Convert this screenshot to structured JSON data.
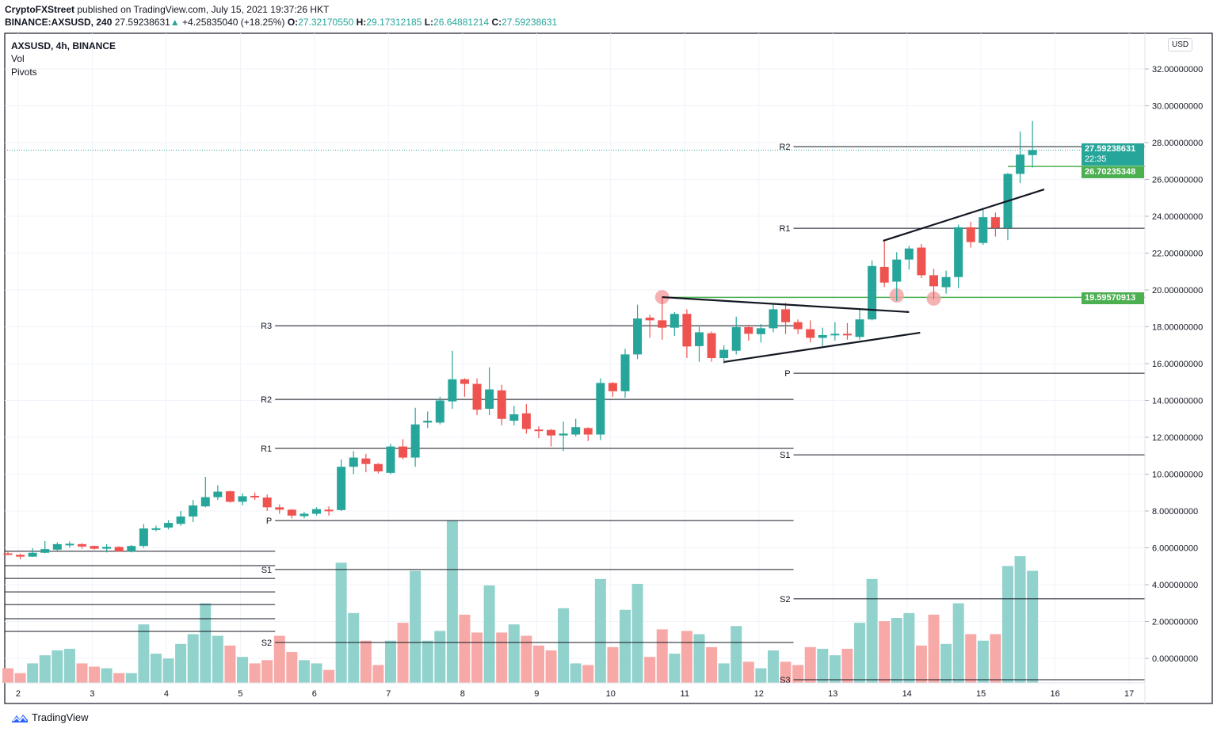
{
  "header": {
    "publisher": "CryptoFXStreet",
    "published_text": "published on TradingView.com, July 15, 2021 19:37:26 HKT",
    "symbol": "BINANCE:AXSUSD, 240",
    "last": "27.59238631",
    "change_arrow": "▲",
    "change": "+4.25835040 (+18.25%)",
    "o_label": "O:",
    "o": "27.32170550",
    "h_label": "H:",
    "h": "29.17312185",
    "l_label": "L:",
    "l": "26.64881214",
    "c_label": "C:",
    "c": "27.59238631"
  },
  "legend": {
    "title": "AXSUSD, 4h, BINANCE",
    "indicator_1": "Vol",
    "indicator_2": "Pivots"
  },
  "price_axis": {
    "currency_button": "USD",
    "last_price_tag": "27.59238631",
    "countdown": "22:35",
    "tag_2": "26.70235348",
    "tag_3": "19.59570913"
  },
  "footer": {
    "brand": "TradingView"
  },
  "colors": {
    "up": "#26a69a",
    "down": "#ef5350",
    "vol_up": "#92d2cc",
    "vol_down": "#f7a9a7",
    "support_line": "#4caf50",
    "marker": "#f4a5a5"
  },
  "chart_data": {
    "type": "candlestick",
    "title": "AXSUSD, 4h, BINANCE",
    "timeframe": "4h",
    "x_tick_labels": [
      "2",
      "3",
      "4",
      "5",
      "6",
      "7",
      "8",
      "9",
      "10",
      "11",
      "12",
      "13",
      "14",
      "15",
      "16",
      "17"
    ],
    "y_ticks": [
      0,
      2,
      4,
      6,
      8,
      10,
      12,
      14,
      16,
      18,
      20,
      22,
      24,
      26,
      28,
      30,
      32
    ],
    "y_tick_format": "8 decimals",
    "ylim": [
      -1.3,
      34.5
    ],
    "grid": true,
    "candles_ohlc": [
      [
        5.7,
        5.78,
        5.6,
        5.68
      ],
      [
        5.62,
        5.68,
        5.38,
        5.52
      ],
      [
        5.52,
        5.98,
        5.5,
        5.73
      ],
      [
        5.73,
        6.37,
        5.7,
        5.93
      ],
      [
        5.9,
        6.3,
        5.85,
        6.2
      ],
      [
        6.18,
        6.35,
        6.0,
        6.22
      ],
      [
        6.2,
        6.25,
        5.95,
        6.07
      ],
      [
        6.1,
        6.12,
        5.9,
        5.95
      ],
      [
        5.95,
        6.2,
        5.75,
        6.05
      ],
      [
        6.05,
        6.08,
        5.78,
        5.8
      ],
      [
        5.8,
        6.15,
        5.75,
        6.1
      ],
      [
        6.1,
        7.3,
        6.0,
        7.05
      ],
      [
        7.02,
        7.2,
        6.9,
        7.06
      ],
      [
        7.1,
        7.5,
        7.0,
        7.35
      ],
      [
        7.3,
        8.0,
        7.2,
        7.7
      ],
      [
        7.7,
        8.6,
        7.4,
        8.3
      ],
      [
        8.25,
        9.85,
        8.2,
        8.75
      ],
      [
        8.75,
        9.4,
        8.6,
        9.05
      ],
      [
        9.07,
        9.1,
        8.45,
        8.5
      ],
      [
        8.5,
        8.95,
        8.3,
        8.8
      ],
      [
        8.82,
        9.0,
        8.6,
        8.78
      ],
      [
        8.73,
        8.9,
        8.0,
        8.2
      ],
      [
        8.2,
        8.35,
        7.85,
        8.07
      ],
      [
        8.07,
        8.1,
        7.6,
        7.75
      ],
      [
        7.72,
        7.95,
        7.6,
        7.85
      ],
      [
        7.85,
        8.2,
        7.75,
        8.1
      ],
      [
        8.07,
        8.25,
        7.75,
        8.03
      ],
      [
        8.05,
        10.8,
        8.0,
        10.4
      ],
      [
        10.4,
        11.25,
        10.0,
        10.9
      ],
      [
        10.85,
        11.1,
        10.1,
        10.55
      ],
      [
        10.55,
        10.6,
        10.05,
        10.15
      ],
      [
        10.07,
        11.65,
        10.0,
        11.5
      ],
      [
        11.5,
        11.9,
        10.8,
        10.9
      ],
      [
        10.9,
        13.6,
        10.4,
        12.7
      ],
      [
        12.8,
        13.4,
        12.5,
        12.9
      ],
      [
        12.8,
        14.2,
        12.7,
        14.0
      ],
      [
        13.95,
        16.7,
        13.55,
        15.15
      ],
      [
        15.15,
        15.2,
        14.2,
        14.9
      ],
      [
        14.9,
        15.2,
        13.2,
        13.5
      ],
      [
        13.55,
        15.8,
        13.2,
        14.6
      ],
      [
        14.55,
        14.85,
        12.65,
        13.0
      ],
      [
        12.9,
        13.7,
        12.65,
        13.25
      ],
      [
        13.3,
        13.8,
        12.2,
        12.45
      ],
      [
        12.42,
        12.6,
        11.95,
        12.38
      ],
      [
        12.4,
        12.45,
        11.5,
        12.1
      ],
      [
        12.1,
        12.85,
        11.25,
        12.2
      ],
      [
        12.15,
        13.0,
        12.05,
        12.55
      ],
      [
        12.5,
        12.55,
        11.8,
        12.15
      ],
      [
        12.15,
        15.2,
        11.85,
        14.95
      ],
      [
        14.95,
        15.0,
        14.2,
        14.5
      ],
      [
        14.5,
        16.8,
        14.15,
        16.5
      ],
      [
        16.5,
        19.2,
        16.25,
        18.45
      ],
      [
        18.5,
        18.65,
        17.4,
        18.35
      ],
      [
        18.35,
        19.65,
        17.3,
        17.95
      ],
      [
        17.95,
        18.8,
        17.5,
        18.7
      ],
      [
        18.7,
        18.95,
        16.3,
        16.93
      ],
      [
        16.95,
        18.0,
        16.1,
        17.7
      ],
      [
        17.65,
        17.75,
        16.1,
        16.3
      ],
      [
        16.3,
        17.0,
        16.0,
        16.75
      ],
      [
        16.7,
        18.55,
        16.5,
        17.98
      ],
      [
        17.98,
        18.1,
        17.25,
        17.62
      ],
      [
        17.6,
        18.15,
        17.15,
        17.92
      ],
      [
        17.92,
        19.2,
        17.7,
        18.95
      ],
      [
        18.95,
        19.3,
        17.6,
        18.25
      ],
      [
        18.25,
        18.4,
        17.6,
        17.87
      ],
      [
        17.87,
        18.35,
        17.15,
        17.4
      ],
      [
        17.4,
        17.95,
        16.95,
        17.55
      ],
      [
        17.57,
        18.25,
        17.25,
        17.62
      ],
      [
        17.62,
        18.2,
        17.3,
        17.55
      ],
      [
        17.45,
        19.0,
        17.3,
        18.4
      ],
      [
        18.4,
        21.6,
        18.35,
        21.3
      ],
      [
        21.25,
        22.65,
        20.15,
        20.4
      ],
      [
        20.45,
        22.05,
        19.4,
        21.65
      ],
      [
        21.65,
        22.4,
        21.1,
        22.25
      ],
      [
        22.3,
        22.5,
        20.65,
        20.8
      ],
      [
        20.8,
        21.15,
        19.5,
        20.2
      ],
      [
        20.15,
        21.05,
        19.8,
        20.7
      ],
      [
        20.7,
        23.55,
        20.1,
        23.4
      ],
      [
        23.4,
        23.7,
        22.3,
        22.6
      ],
      [
        22.55,
        24.4,
        22.45,
        23.95
      ],
      [
        23.95,
        24.2,
        22.9,
        23.37
      ],
      [
        23.37,
        26.35,
        22.7,
        26.3
      ],
      [
        26.3,
        28.6,
        25.8,
        27.35
      ],
      [
        27.3217055,
        29.17312185,
        26.64881214,
        27.59238631
      ]
    ],
    "volume_relative_pct": [
      9,
      6,
      12,
      17,
      20,
      21,
      12,
      10,
      9,
      6,
      6,
      36,
      18,
      15,
      24,
      30,
      49,
      29,
      23,
      16,
      12,
      14,
      29,
      19,
      14,
      12,
      8,
      74,
      43,
      26,
      11,
      26,
      37,
      69,
      26,
      32,
      100,
      42,
      31,
      60,
      31,
      36,
      29,
      23,
      20,
      46,
      12,
      11,
      64,
      22,
      45,
      61,
      16,
      33,
      18,
      32,
      30,
      22,
      12,
      35,
      13,
      9,
      20,
      13,
      11,
      22,
      21,
      17,
      21,
      37,
      64,
      38,
      40,
      43,
      23,
      42,
      24,
      49,
      30,
      26,
      30,
      72,
      78,
      69
    ],
    "pivots": [
      {
        "levels": [
          {
            "label": "",
            "value": 5.81
          },
          {
            "label": "",
            "value": 5.03
          },
          {
            "label": "",
            "value": 4.34
          },
          {
            "label": "",
            "value": 3.61
          },
          {
            "label": "",
            "value": 2.92
          },
          {
            "label": "",
            "value": 2.15
          },
          {
            "label": "",
            "value": 1.46
          }
        ],
        "from_candle": -1,
        "to_candle": 21
      },
      {
        "levels": [
          {
            "label": "R3",
            "value": 18.06
          },
          {
            "label": "R2",
            "value": 14.06
          },
          {
            "label": "R1",
            "value": 11.4
          },
          {
            "label": "P",
            "value": 7.48
          },
          {
            "label": "S1",
            "value": 4.82
          },
          {
            "label": "S2",
            "value": 0.86
          }
        ],
        "from_candle": 21,
        "to_candle": 63
      },
      {
        "levels": [
          {
            "label": "R2",
            "value": 27.78
          },
          {
            "label": "R1",
            "value": 23.35
          },
          {
            "label": "P",
            "value": 15.48
          },
          {
            "label": "S1",
            "value": 11.05
          },
          {
            "label": "S2",
            "value": 3.23
          },
          {
            "label": "S3",
            "value": -1.16
          }
        ],
        "from_candle": 63,
        "to_candle": 92
      }
    ],
    "horizontal_lines": [
      {
        "value": 19.59570913,
        "from_candle": 53,
        "color": "#4caf50"
      },
      {
        "value": 26.70235348,
        "from_candle": 81,
        "color": "#4caf50"
      }
    ],
    "trendlines": [
      {
        "from": [
          53,
          19.61
        ],
        "to": [
          73,
          18.8
        ]
      },
      {
        "from": [
          58,
          16.09
        ],
        "to": [
          73.9,
          17.68
        ]
      },
      {
        "from": [
          70.9,
          22.67
        ],
        "to": [
          83.95,
          25.46
        ]
      }
    ],
    "markers": [
      [
        53,
        19.61
      ],
      [
        72,
        19.7
      ],
      [
        75,
        19.53
      ]
    ],
    "last_price": 27.59238631
  }
}
